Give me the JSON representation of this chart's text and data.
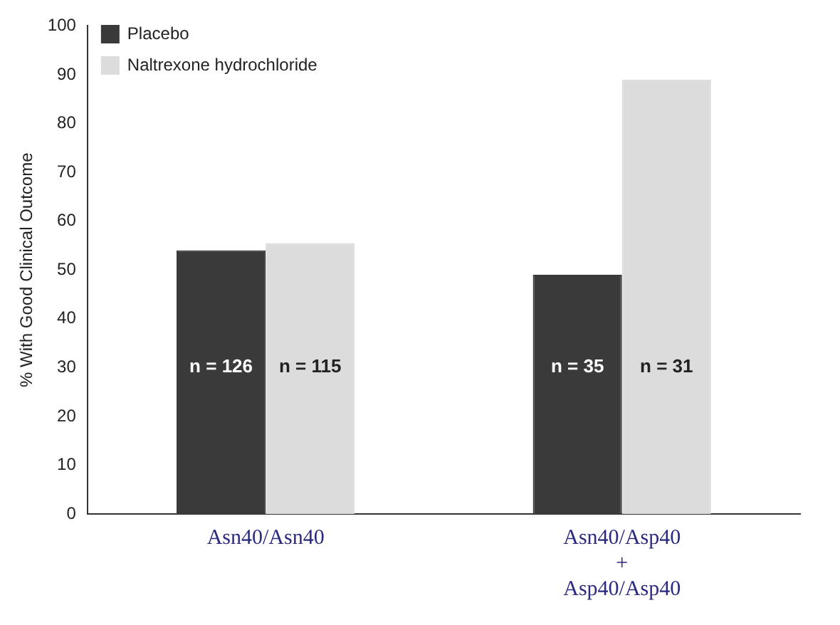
{
  "chart_data": {
    "type": "bar",
    "ylabel": "% With Good Clinical Outcome",
    "categories": [
      "Asn40/Asn40",
      "Asn40/Asp40\n+\nAsp40/Asp40"
    ],
    "series": [
      {
        "name": "Placebo",
        "color": "#3a3a3a",
        "values": [
          54,
          49
        ]
      },
      {
        "name": "Naltrexone hydrochloride",
        "color": "#dcdcdc",
        "values": [
          55.5,
          89
        ]
      }
    ],
    "annotations": [
      {
        "text": "n = 126",
        "x": "Asn40/Asn40",
        "y": 30
      },
      {
        "text": "n = 115",
        "x": "Asn40/Asn40",
        "y": 30
      },
      {
        "text": "n = 35",
        "x": "Asn40/Asp40\n+\nAsp40/Asp40",
        "y": 30
      },
      {
        "text": "n = 31",
        "x": "Asn40/Asp40\n+\nAsp40/Asp40",
        "y": 30
      }
    ],
    "ylim": [
      0,
      100
    ],
    "yticks": [
      0,
      10,
      20,
      30,
      40,
      50,
      60,
      70,
      80,
      90,
      100
    ],
    "grid": false,
    "legend": "top left"
  }
}
